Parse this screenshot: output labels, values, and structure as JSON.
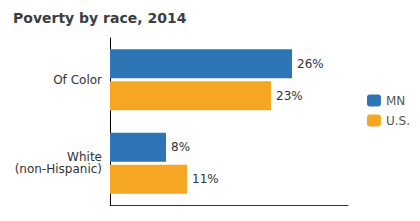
{
  "chart_data": {
    "type": "bar",
    "orientation": "horizontal",
    "title": "Poverty by race, 2014",
    "categories": [
      "Of Color",
      "White\n(non-Hispanic)"
    ],
    "series": [
      {
        "name": "MN",
        "color": "#2E75B6",
        "values": [
          26,
          8
        ],
        "value_labels": [
          "26%",
          "8%"
        ]
      },
      {
        "name": "U.S.",
        "color": "#F5A623",
        "values": [
          23,
          11
        ],
        "value_labels": [
          "23%",
          "11%"
        ]
      }
    ],
    "xlim": [
      0,
      34
    ],
    "xticks": [],
    "data_labels": true,
    "tick_labels": "y",
    "grid": false,
    "legend": "right"
  }
}
